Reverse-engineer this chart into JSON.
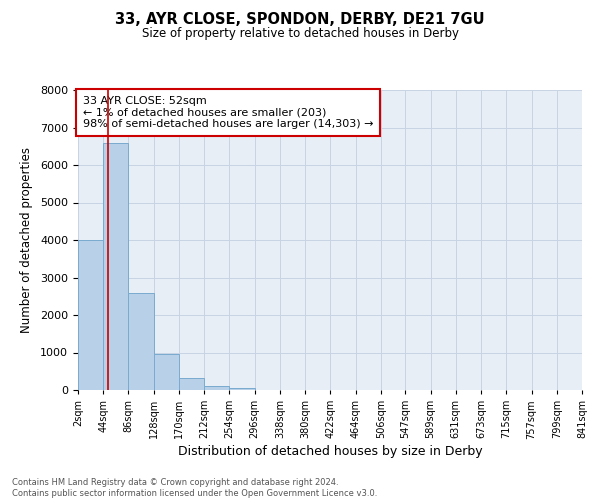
{
  "title_line1": "33, AYR CLOSE, SPONDON, DERBY, DE21 7GU",
  "title_line2": "Size of property relative to detached houses in Derby",
  "xlabel": "Distribution of detached houses by size in Derby",
  "ylabel": "Number of detached properties",
  "bin_edges": [
    2,
    44,
    86,
    128,
    170,
    212,
    254,
    296,
    338,
    380,
    422,
    464,
    506,
    547,
    589,
    631,
    673,
    715,
    757,
    799,
    841
  ],
  "bin_labels": [
    "2sqm",
    "44sqm",
    "86sqm",
    "128sqm",
    "170sqm",
    "212sqm",
    "254sqm",
    "296sqm",
    "338sqm",
    "380sqm",
    "422sqm",
    "464sqm",
    "506sqm",
    "547sqm",
    "589sqm",
    "631sqm",
    "673sqm",
    "715sqm",
    "757sqm",
    "799sqm",
    "841sqm"
  ],
  "bar_heights": [
    4000,
    6600,
    2600,
    950,
    320,
    110,
    60,
    0,
    0,
    0,
    0,
    0,
    0,
    0,
    0,
    0,
    0,
    0,
    0,
    0
  ],
  "bar_color": "#b8d0e8",
  "bar_edge_color": "#7aaad0",
  "property_line_x": 52,
  "property_line_color": "#cc0000",
  "annotation_text": "33 AYR CLOSE: 52sqm\n← 1% of detached houses are smaller (203)\n98% of semi-detached houses are larger (14,303) →",
  "annotation_box_color": "#ffffff",
  "annotation_box_edge": "#cc0000",
  "ylim": [
    0,
    8000
  ],
  "yticks": [
    0,
    1000,
    2000,
    3000,
    4000,
    5000,
    6000,
    7000,
    8000
  ],
  "grid_color": "#c8d4e4",
  "bg_color": "#e8eef6",
  "footer_line1": "Contains HM Land Registry data © Crown copyright and database right 2024.",
  "footer_line2": "Contains public sector information licensed under the Open Government Licence v3.0."
}
